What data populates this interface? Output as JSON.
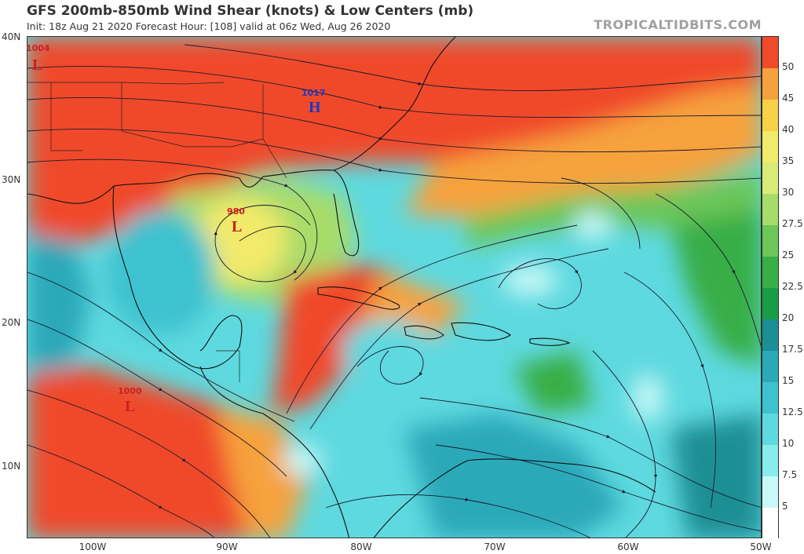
{
  "header": {
    "title": "GFS 200mb-850mb Wind Shear (knots) & Low Centers (mb)",
    "subtitle": "Init: 18z Aug 21 2020   Forecast Hour: [108]   valid at 06z Wed, Aug 26 2020",
    "brand": "TROPICALTIDBITS.COM"
  },
  "axes": {
    "latitudes": [
      "40N",
      "30N",
      "20N",
      "10N"
    ],
    "longitudes": [
      "100W",
      "90W",
      "80W",
      "70W",
      "60W",
      "50W"
    ]
  },
  "colorbar": {
    "labels": [
      "50",
      "45",
      "40",
      "35",
      "30",
      "27.5",
      "25",
      "22.5",
      "20",
      "17.5",
      "15",
      "12.5",
      "10",
      "7.5",
      "5"
    ],
    "colors": [
      "#f04a2a",
      "#f6a23c",
      "#f8d048",
      "#f2ea6a",
      "#d8ea78",
      "#a8dc6a",
      "#6cc658",
      "#38ae46",
      "#189c48",
      "#1b8f94",
      "#2aa9b9",
      "#3ec2cf",
      "#5ed9df",
      "#88ecec",
      "#c8f8f8",
      "#ffffff"
    ]
  },
  "centers": [
    {
      "type": "L",
      "value": "1004",
      "color": "#cc2020"
    },
    {
      "type": "H",
      "value": "1017",
      "color": "#1838c8"
    },
    {
      "type": "L",
      "value": "980",
      "color": "#cc2020"
    },
    {
      "type": "L",
      "value": "1000",
      "color": "#cc2020"
    }
  ]
}
